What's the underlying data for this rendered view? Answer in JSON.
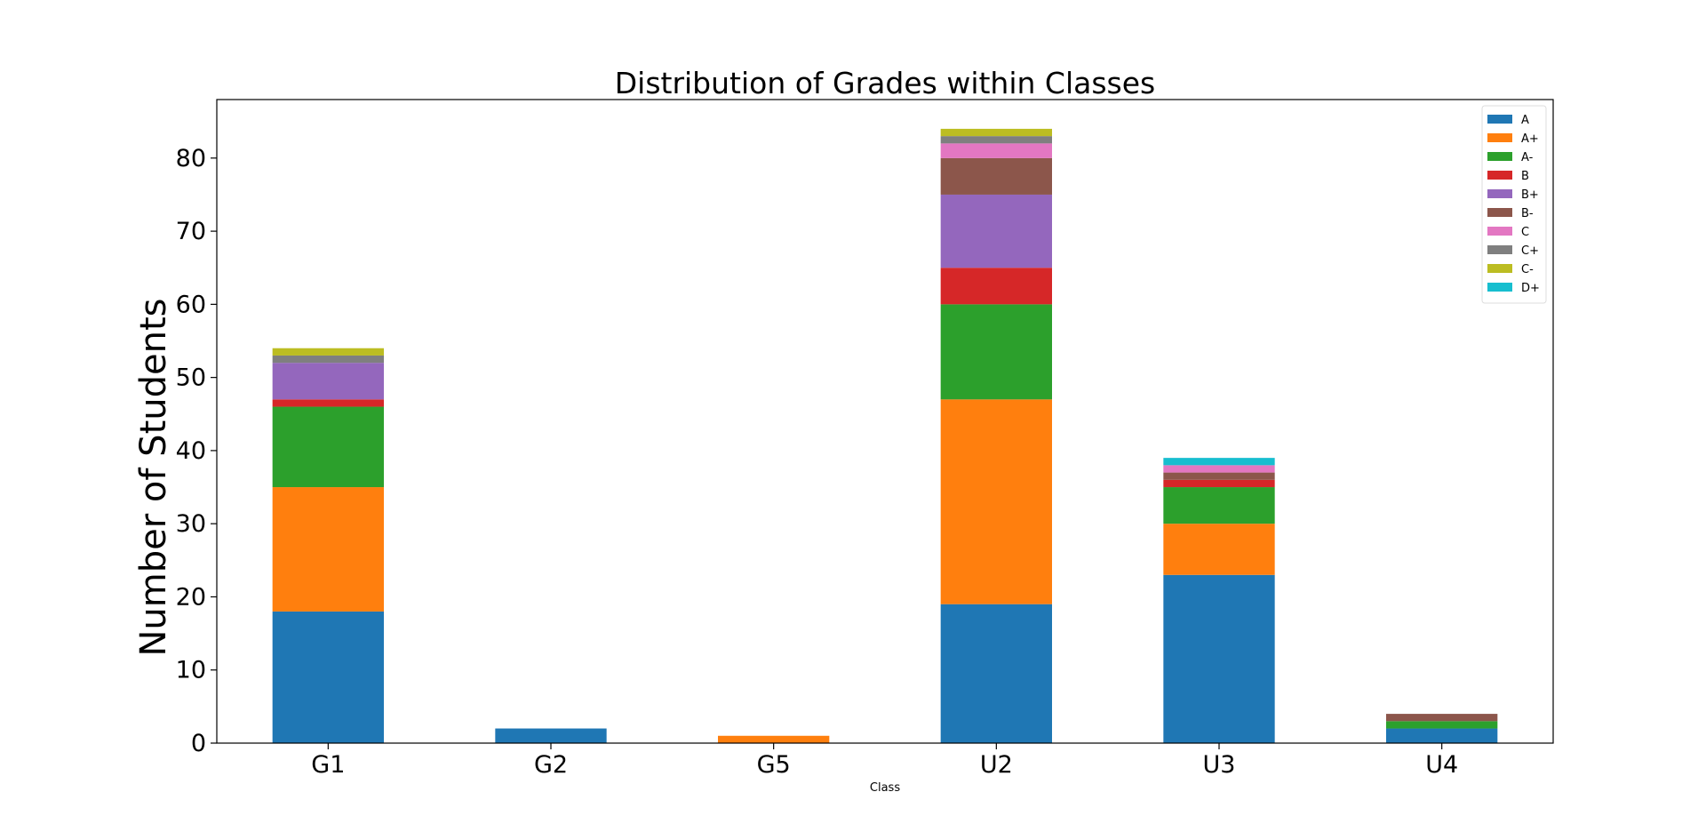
{
  "chart_data": {
    "type": "bar",
    "stacked": true,
    "title": "Distribution of Grades within Classes",
    "xlabel": "Class",
    "ylabel": "Number of Students",
    "ylim": [
      0,
      88
    ],
    "yticks": [
      "0",
      "10",
      "20",
      "30",
      "40",
      "50",
      "60",
      "70",
      "80"
    ],
    "grid": false,
    "legend_position": "top-right",
    "categories": [
      "G1",
      "G2",
      "G5",
      "U2",
      "U3",
      "U4"
    ],
    "series": [
      {
        "name": "A",
        "color": "#1f77b4",
        "values": [
          18,
          2,
          0,
          19,
          23,
          2
        ]
      },
      {
        "name": "A+",
        "color": "#ff7f0e",
        "values": [
          17,
          0,
          1,
          28,
          7,
          0
        ]
      },
      {
        "name": "A-",
        "color": "#2ca02c",
        "values": [
          11,
          0,
          0,
          13,
          5,
          1
        ]
      },
      {
        "name": "B",
        "color": "#d62728",
        "values": [
          1,
          0,
          0,
          5,
          1,
          0
        ]
      },
      {
        "name": "B+",
        "color": "#9467bd",
        "values": [
          5,
          0,
          0,
          10,
          0,
          0
        ]
      },
      {
        "name": "B-",
        "color": "#8c564b",
        "values": [
          0,
          0,
          0,
          5,
          1,
          1
        ]
      },
      {
        "name": "C",
        "color": "#e377c2",
        "values": [
          0,
          0,
          0,
          2,
          1,
          0
        ]
      },
      {
        "name": "C+",
        "color": "#7f7f7f",
        "values": [
          1,
          0,
          0,
          1,
          0,
          0
        ]
      },
      {
        "name": "C-",
        "color": "#bcbd22",
        "values": [
          1,
          0,
          0,
          1,
          0,
          0
        ]
      },
      {
        "name": "D+",
        "color": "#17becf",
        "values": [
          0,
          0,
          0,
          0,
          1,
          0
        ]
      }
    ]
  }
}
